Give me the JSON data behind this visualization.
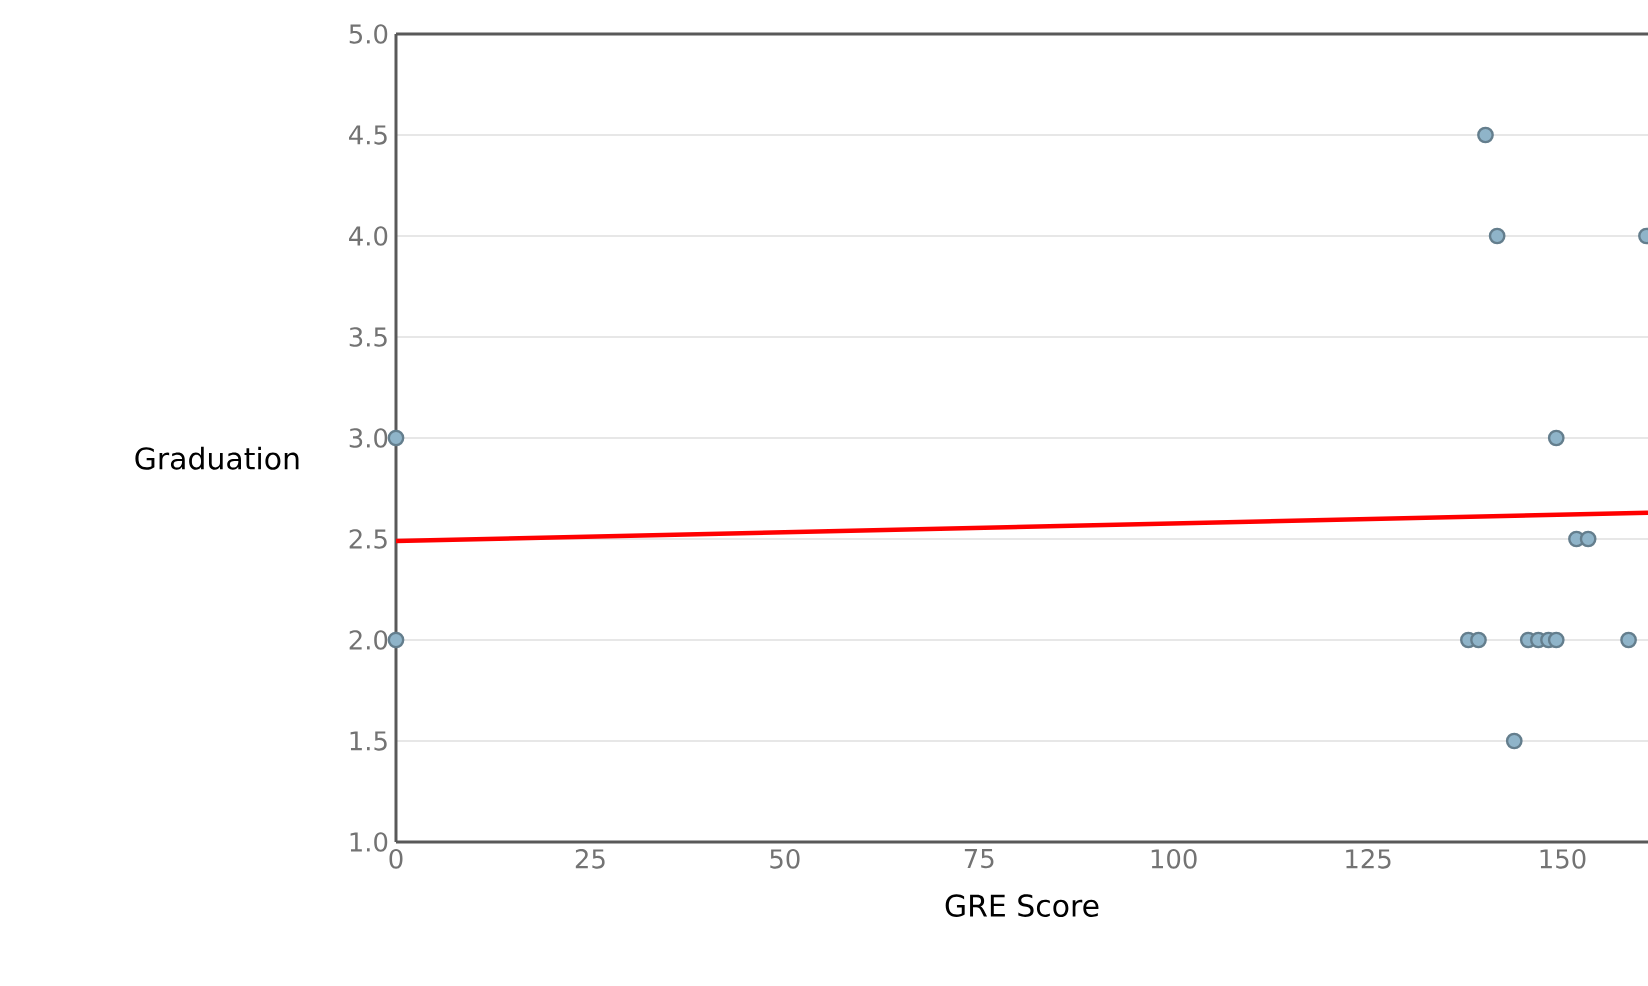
{
  "chart_data": {
    "type": "scatter",
    "xlabel": "GRE Score",
    "ylabel": "Graduation",
    "xlim": [
      0,
      161
    ],
    "ylim": [
      1,
      5
    ],
    "xticks": [
      0,
      25,
      50,
      75,
      100,
      125,
      150
    ],
    "yticks": [
      {
        "value": 1,
        "label": "1.0"
      },
      {
        "value": 1.5,
        "label": "1.5"
      },
      {
        "value": 2,
        "label": "2.0"
      },
      {
        "value": 2.5,
        "label": "2.5"
      },
      {
        "value": 3,
        "label": "3.0"
      },
      {
        "value": 3.5,
        "label": "3.5"
      },
      {
        "value": 4,
        "label": "4.0"
      },
      {
        "value": 4.5,
        "label": "4.5"
      },
      {
        "value": 5,
        "label": "5.0"
      }
    ],
    "grid": "y",
    "marker": "circle",
    "series": [
      {
        "color": "#8fb4c9",
        "x": [
          0,
          0,
          140.1,
          141.6,
          160.8,
          149.2,
          151.8,
          153.3,
          137.9,
          139.2,
          145.6,
          146.9,
          148.2,
          149.2,
          158.5,
          143.8
        ],
        "values": [
          3,
          2,
          4.5,
          4,
          4,
          3,
          2.5,
          2.5,
          2,
          2,
          2,
          2,
          2,
          2,
          2,
          1.5
        ]
      },
      {
        "type": "line",
        "color": "#ff0000",
        "marker": "none",
        "x": [
          0,
          161
        ],
        "values": [
          2.49,
          2.63
        ]
      }
    ]
  }
}
